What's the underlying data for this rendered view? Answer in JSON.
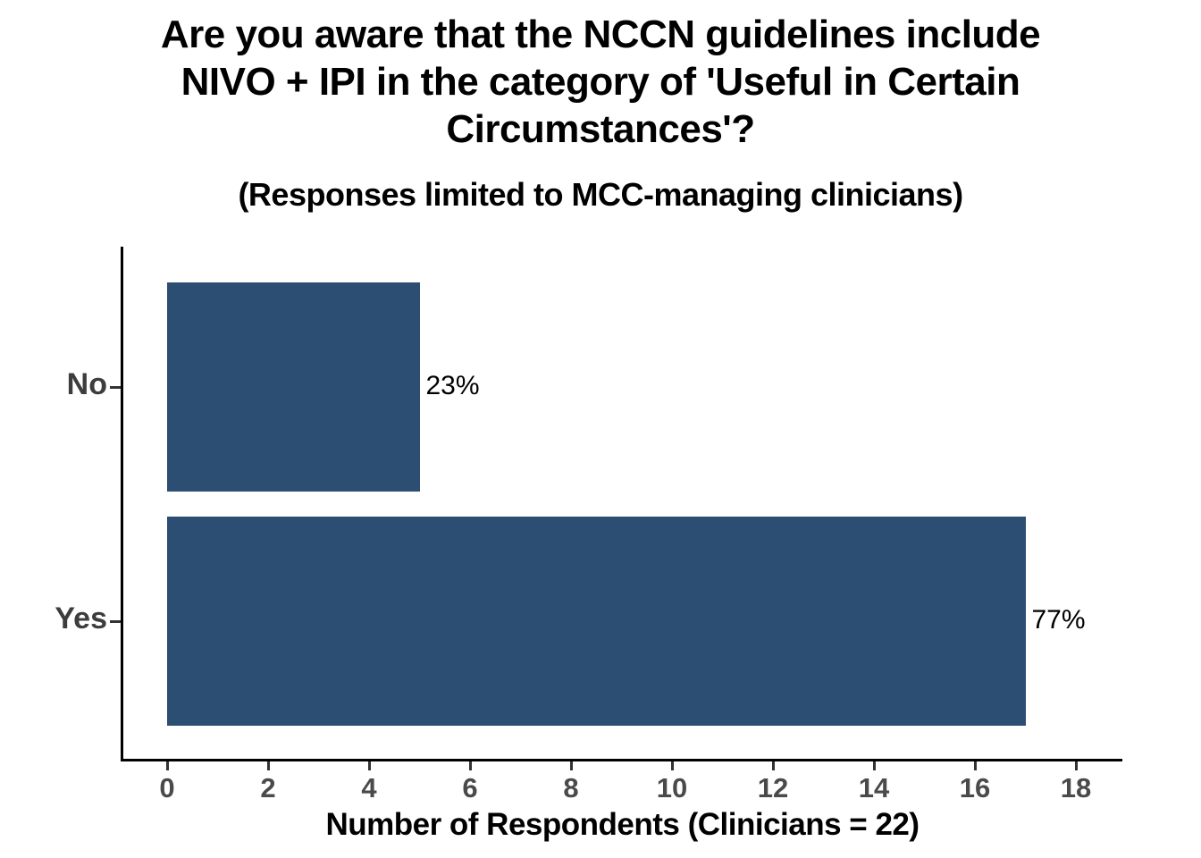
{
  "chart_data": {
    "type": "bar",
    "orientation": "horizontal",
    "title": "Are you aware that the NCCN guidelines include NIVO + IPI in the category of 'Useful in Certain Circumstances'?",
    "title_lines": [
      "Are you aware that the NCCN guidelines include",
      "NIVO + IPI in the category of 'Useful in Certain",
      "Circumstances'?"
    ],
    "subtitle": "(Responses limited to MCC-managing clinicians)",
    "categories": [
      "No",
      "Yes"
    ],
    "values": [
      5,
      17
    ],
    "bar_labels": [
      "23%",
      "77%"
    ],
    "xlabel": "Number of Respondents (Clinicians = 22)",
    "ylabel": "",
    "xlim": [
      0,
      18
    ],
    "xticks": [
      0,
      2,
      4,
      6,
      8,
      10,
      12,
      14,
      16,
      18
    ],
    "grid": false,
    "legend": false,
    "colors": {
      "bar": "#2C4E72",
      "axis": "#000000",
      "tick_label": "#4a4a4a",
      "category_label": "#3d3d3d",
      "value_label": "#000000",
      "background": "#ffffff"
    }
  }
}
